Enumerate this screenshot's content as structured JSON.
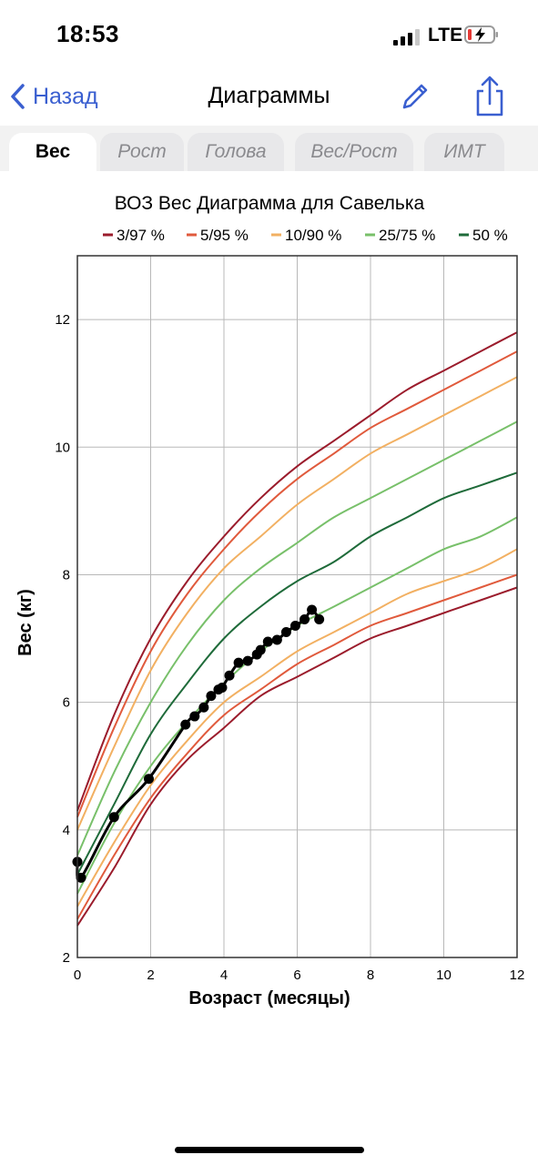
{
  "status": {
    "time": "18:53",
    "network": "LTE"
  },
  "nav": {
    "back_label": "Назад",
    "title": "Диаграммы"
  },
  "tabs": [
    {
      "label": "Вес",
      "active": true
    },
    {
      "label": "Рост",
      "active": false
    },
    {
      "label": "Голова",
      "active": false
    },
    {
      "label": "Вес/Рост",
      "active": false
    },
    {
      "label": "ИМТ",
      "active": false
    }
  ],
  "colors": {
    "accent": "#3a5fd0",
    "p3_97": "#9b1c2c",
    "p5_95": "#e05a3c",
    "p10_90": "#f2b062",
    "p25_75": "#78c06a",
    "p50": "#1f6b3a",
    "child": "#000000"
  },
  "icons": {
    "back": "chevron-left-icon",
    "edit": "pencil-icon",
    "share": "share-icon"
  },
  "chart_data": {
    "type": "line",
    "title": "ВОЗ Вес Диаграмма для Савелька",
    "xlabel": "Возраст (месяцы)",
    "ylabel": "Вес (кг)",
    "xlim": [
      0,
      12
    ],
    "ylim": [
      2,
      13
    ],
    "xticks": [
      0,
      2,
      4,
      6,
      8,
      10,
      12
    ],
    "yticks": [
      2,
      4,
      6,
      8,
      10,
      12
    ],
    "grid": true,
    "legend": [
      {
        "label": "3/97 %",
        "color": "#9b1c2c"
      },
      {
        "label": "5/95 %",
        "color": "#e05a3c"
      },
      {
        "label": "10/90 %",
        "color": "#f2b062"
      },
      {
        "label": "25/75 %",
        "color": "#78c06a"
      },
      {
        "label": "50 %",
        "color": "#1f6b3a"
      }
    ],
    "x": [
      0,
      1,
      2,
      3,
      4,
      5,
      6,
      7,
      8,
      9,
      10,
      11,
      12
    ],
    "series": [
      {
        "name": "3/97 %",
        "color": "#9b1c2c",
        "values": [
          2.5,
          3.4,
          4.4,
          5.1,
          5.6,
          6.1,
          6.4,
          6.7,
          7.0,
          7.2,
          7.4,
          7.6,
          7.8
        ]
      },
      {
        "name": "5/95 %",
        "color": "#e05a3c",
        "values": [
          2.6,
          3.6,
          4.5,
          5.2,
          5.8,
          6.2,
          6.6,
          6.9,
          7.2,
          7.4,
          7.6,
          7.8,
          8.0
        ]
      },
      {
        "name": "10/90 %",
        "color": "#f2b062",
        "values": [
          2.8,
          3.8,
          4.7,
          5.4,
          6.0,
          6.4,
          6.8,
          7.1,
          7.4,
          7.7,
          7.9,
          8.1,
          8.4
        ]
      },
      {
        "name": "25/75 %",
        "color": "#78c06a",
        "values": [
          3.0,
          4.1,
          5.0,
          5.7,
          6.3,
          6.8,
          7.2,
          7.5,
          7.8,
          8.1,
          8.4,
          8.6,
          8.9
        ]
      },
      {
        "name": "50 %",
        "color": "#1f6b3a",
        "values": [
          3.3,
          4.4,
          5.5,
          6.3,
          7.0,
          7.5,
          7.9,
          8.2,
          8.6,
          8.9,
          9.2,
          9.4,
          9.6
        ]
      },
      {
        "name": "25/75 %",
        "color": "#78c06a",
        "values": [
          3.6,
          4.9,
          6.0,
          6.9,
          7.6,
          8.1,
          8.5,
          8.9,
          9.2,
          9.5,
          9.8,
          10.1,
          10.4
        ]
      },
      {
        "name": "10/90 %",
        "color": "#f2b062",
        "values": [
          4.0,
          5.3,
          6.5,
          7.4,
          8.1,
          8.6,
          9.1,
          9.5,
          9.9,
          10.2,
          10.5,
          10.8,
          11.1
        ]
      },
      {
        "name": "5/95 %",
        "color": "#e05a3c",
        "values": [
          4.2,
          5.6,
          6.8,
          7.7,
          8.4,
          9.0,
          9.5,
          9.9,
          10.3,
          10.6,
          10.9,
          11.2,
          11.5
        ]
      },
      {
        "name": "3/97 %",
        "color": "#9b1c2c",
        "values": [
          4.3,
          5.8,
          7.0,
          7.9,
          8.6,
          9.2,
          9.7,
          10.1,
          10.5,
          10.9,
          11.2,
          11.5,
          11.8
        ]
      }
    ],
    "child": {
      "color": "#000000",
      "points": [
        [
          0.0,
          3.5
        ],
        [
          0.1,
          3.25
        ],
        [
          1.0,
          4.2
        ],
        [
          1.95,
          4.8
        ],
        [
          2.95,
          5.65
        ],
        [
          3.2,
          5.78
        ],
        [
          3.45,
          5.92
        ],
        [
          3.65,
          6.1
        ],
        [
          3.85,
          6.2
        ],
        [
          3.95,
          6.23
        ],
        [
          4.15,
          6.42
        ],
        [
          4.4,
          6.62
        ],
        [
          4.65,
          6.65
        ],
        [
          4.9,
          6.75
        ],
        [
          5.0,
          6.82
        ],
        [
          5.2,
          6.95
        ],
        [
          5.45,
          6.98
        ],
        [
          5.7,
          7.1
        ],
        [
          5.95,
          7.2
        ],
        [
          6.2,
          7.3
        ],
        [
          6.4,
          7.45
        ],
        [
          6.6,
          7.3
        ]
      ]
    }
  }
}
